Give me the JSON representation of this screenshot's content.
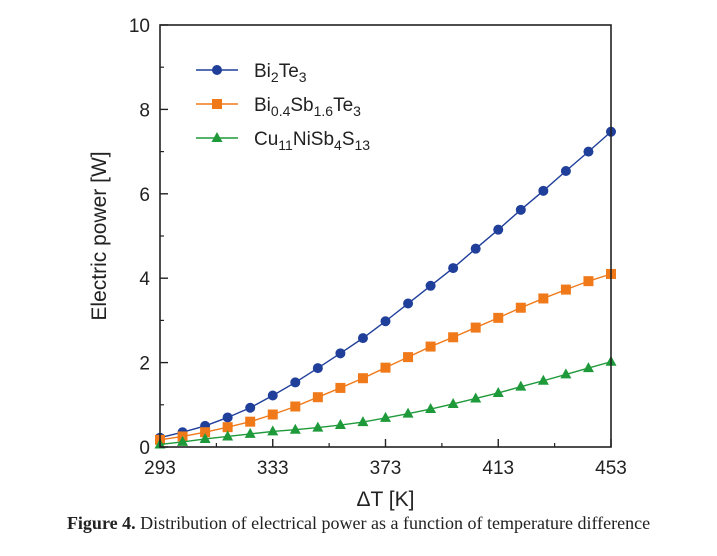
{
  "chart_data": {
    "type": "line",
    "xlabel": "ΔT [K]",
    "ylabel": "Electric power [W]",
    "xlim": [
      293,
      453
    ],
    "ylim": [
      0,
      10
    ],
    "x_ticks": [
      "293",
      "333",
      "373",
      "413",
      "453"
    ],
    "y_ticks": [
      "0",
      "2",
      "4",
      "6",
      "8",
      "10"
    ],
    "legend_position": "top-left",
    "grid": false,
    "series": [
      {
        "name": "Bi2Te3",
        "color": "#1f3f9a",
        "marker": "circle",
        "legend": [
          {
            "t": "Bi",
            "s": "n"
          },
          {
            "t": "2",
            "s": "sub"
          },
          {
            "t": "Te",
            "s": "n"
          },
          {
            "t": "3",
            "s": "sub"
          }
        ],
        "x": [
          293,
          301,
          309,
          317,
          325,
          333,
          341,
          349,
          357,
          365,
          373,
          381,
          389,
          397,
          405,
          413,
          421,
          429,
          437,
          445,
          453
        ],
        "y": [
          0.22,
          0.35,
          0.5,
          0.7,
          0.93,
          1.22,
          1.53,
          1.87,
          2.22,
          2.58,
          2.98,
          3.4,
          3.82,
          4.24,
          4.7,
          5.15,
          5.62,
          6.07,
          6.54,
          7.0,
          7.47
        ]
      },
      {
        "name": "Bi0.4Sb1.6Te3",
        "color": "#f07a1a",
        "marker": "square",
        "legend": [
          {
            "t": "Bi",
            "s": "n"
          },
          {
            "t": "0.4",
            "s": "sub"
          },
          {
            "t": "Sb",
            "s": "n"
          },
          {
            "t": "1.6",
            "s": "sub"
          },
          {
            "t": "Te",
            "s": "n"
          },
          {
            "t": "3",
            "s": "sub"
          }
        ],
        "x": [
          293,
          301,
          309,
          317,
          325,
          333,
          341,
          349,
          357,
          365,
          373,
          381,
          389,
          397,
          405,
          413,
          421,
          429,
          437,
          445,
          453
        ],
        "y": [
          0.17,
          0.25,
          0.35,
          0.47,
          0.6,
          0.77,
          0.96,
          1.18,
          1.4,
          1.63,
          1.88,
          2.13,
          2.38,
          2.6,
          2.83,
          3.06,
          3.3,
          3.52,
          3.73,
          3.93,
          4.1
        ]
      },
      {
        "name": "Cu11NiSb4S13",
        "color": "#1f9a3a",
        "marker": "triangle",
        "legend": [
          {
            "t": "Cu",
            "s": "n"
          },
          {
            "t": "11",
            "s": "sub"
          },
          {
            "t": "NiSb",
            "s": "n"
          },
          {
            "t": "4",
            "s": "sub"
          },
          {
            "t": "S",
            "s": "n"
          },
          {
            "t": "13",
            "s": "sub"
          }
        ],
        "x": [
          293,
          301,
          309,
          317,
          325,
          333,
          341,
          349,
          357,
          365,
          373,
          381,
          389,
          397,
          405,
          413,
          421,
          429,
          437,
          445,
          453
        ],
        "y": [
          0.06,
          0.12,
          0.19,
          0.25,
          0.31,
          0.37,
          0.41,
          0.46,
          0.52,
          0.59,
          0.69,
          0.79,
          0.9,
          1.02,
          1.15,
          1.28,
          1.43,
          1.57,
          1.72,
          1.87,
          2.02
        ]
      }
    ]
  },
  "caption": {
    "label": "Figure 4.",
    "text": " Distribution of electrical power as a function of temperature difference"
  }
}
